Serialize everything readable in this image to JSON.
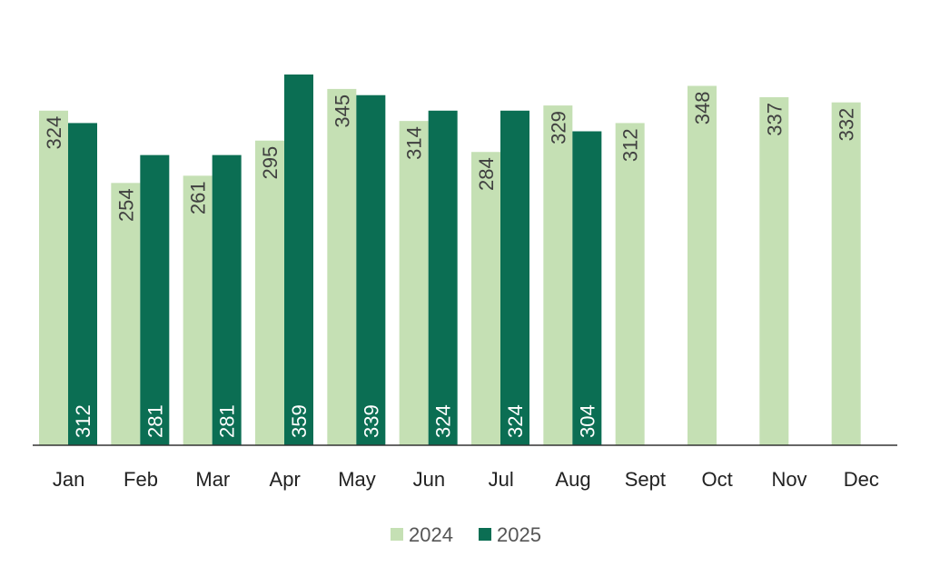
{
  "chart_data": {
    "type": "bar",
    "title": "",
    "xlabel": "",
    "ylabel": "",
    "ylim": [
      0,
      370
    ],
    "grid": false,
    "legend_position": "bottom-center",
    "categories": [
      "Jan",
      "Feb",
      "Mar",
      "Apr",
      "May",
      "Jun",
      "Jul",
      "Aug",
      "Sept",
      "Oct",
      "Nov",
      "Dec"
    ],
    "series": [
      {
        "name": "2024",
        "color": "#c5e0b4",
        "label_color": "#404040",
        "label_anchor": "top",
        "values": [
          324,
          254,
          261,
          295,
          345,
          314,
          284,
          329,
          312,
          348,
          337,
          332
        ]
      },
      {
        "name": "2025",
        "color": "#0b6e53",
        "label_color": "#ffffff",
        "label_anchor": "bottom",
        "values": [
          312,
          281,
          281,
          359,
          339,
          324,
          324,
          304,
          null,
          null,
          null,
          null
        ]
      }
    ]
  }
}
